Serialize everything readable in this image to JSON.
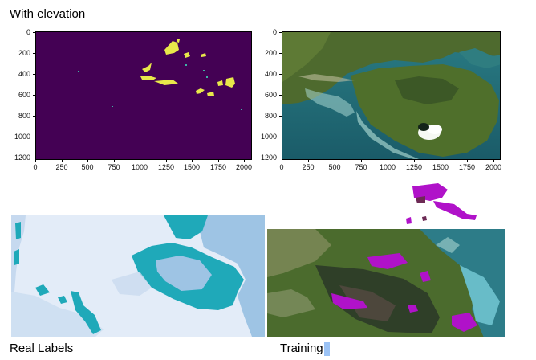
{
  "header": {
    "title": "With elevation"
  },
  "plots": {
    "left": {
      "yticks": [
        "0",
        "200",
        "400",
        "600",
        "800",
        "1000",
        "1200"
      ],
      "xticks": [
        "0",
        "250",
        "500",
        "750",
        "1000",
        "1250",
        "1500",
        "1750",
        "2000"
      ],
      "colors": {
        "background": "#440154",
        "highlight": "#e8e84a"
      }
    },
    "right": {
      "yticks": [
        "0",
        "200",
        "400",
        "600",
        "800",
        "1000",
        "1200"
      ],
      "xticks": [
        "0",
        "250",
        "500",
        "750",
        "1000",
        "1250",
        "1500",
        "1750",
        "2000"
      ]
    }
  },
  "captions": {
    "real_labels": "Real Labels",
    "training": "Training"
  },
  "colors": {
    "sea_light": "#e3ecf8",
    "water_blue": "#9ec4e4",
    "label_teal": "#1fa9b9",
    "overlay_magenta": "#b012c9",
    "vegetation": "#4b6b2d"
  }
}
